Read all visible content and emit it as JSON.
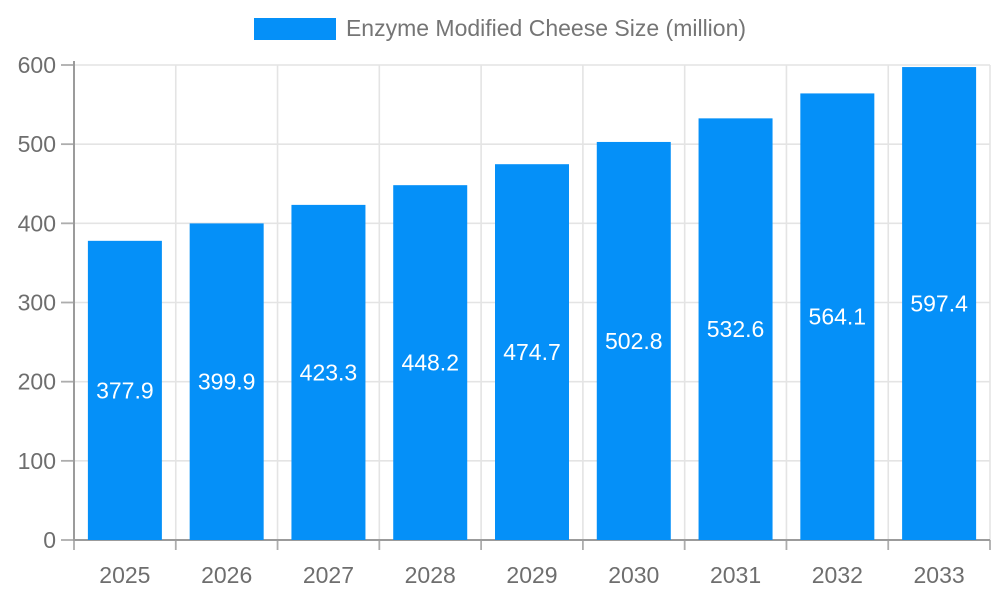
{
  "chart_data": {
    "type": "bar",
    "title": "Enzyme Modified Cheese Size (million)",
    "legend": {
      "label": "Enzyme Modified Cheese Size (million)",
      "position": "top-center"
    },
    "categories": [
      "2025",
      "2026",
      "2027",
      "2028",
      "2029",
      "2030",
      "2031",
      "2032",
      "2033"
    ],
    "series": [
      {
        "name": "Enzyme Modified Cheese Size (million)",
        "values": [
          377.9,
          399.9,
          423.3,
          448.2,
          474.7,
          502.8,
          532.6,
          564.1,
          597.4
        ]
      }
    ],
    "xlabel": "",
    "ylabel": "",
    "ylim": [
      0,
      600
    ],
    "ytick_step": 100,
    "ytick_labels": [
      "0",
      "100",
      "200",
      "300",
      "400",
      "500",
      "600"
    ],
    "grid": true,
    "colors": {
      "bar": "#0590f8",
      "value_label": "#ffffff",
      "axis": "#9b9b9b",
      "tick": "#adadad",
      "grid": "#e4e4e4",
      "tick_label": "#6e6e6e",
      "legend_text": "#757575",
      "background": "#ffffff"
    }
  }
}
